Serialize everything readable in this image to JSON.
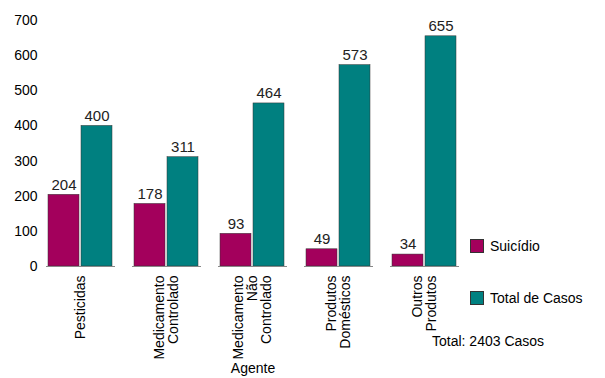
{
  "chart_data": {
    "type": "bar",
    "categories": [
      "Pesticidas",
      "Medicamento Controlado",
      "Medicamento Não Controlado",
      "Produtos Domésticos",
      "Outros Produtos"
    ],
    "series": [
      {
        "name": "Suicídio",
        "color": "#a3005c",
        "values": [
          204,
          178,
          93,
          49,
          34
        ]
      },
      {
        "name": "Total de Casos",
        "color": "#008080",
        "values": [
          400,
          311,
          464,
          573,
          655
        ]
      }
    ],
    "x_label": "Agente",
    "annotation": "Total: 2403 Casos",
    "ylim": [
      0,
      700
    ],
    "yticks": [
      0,
      100,
      200,
      300,
      400,
      500,
      600,
      700
    ],
    "grid": false,
    "data_labels": true,
    "legend": "right"
  }
}
